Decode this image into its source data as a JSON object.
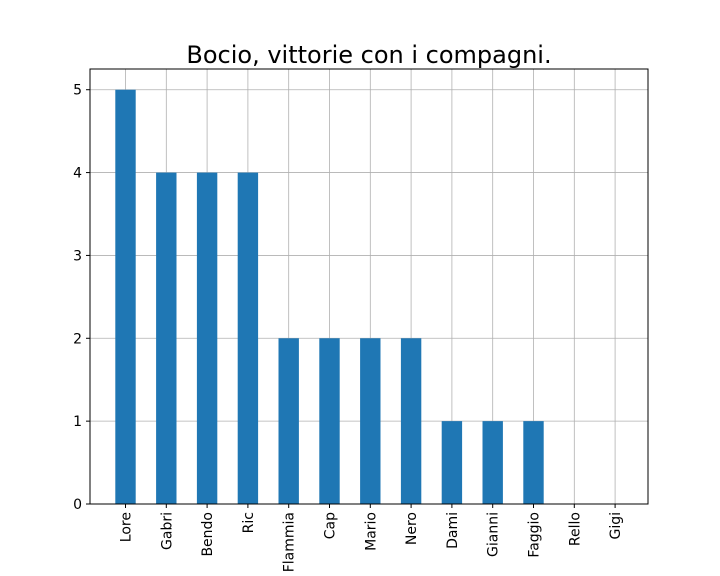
{
  "chart_data": {
    "type": "bar",
    "title": "Bocio, vittorie con i compagni.",
    "xlabel": "",
    "ylabel": "",
    "categories": [
      "Lore",
      "Gabri",
      "Bendo",
      "Ric",
      "Flammia",
      "Cap",
      "Mario",
      "Nero",
      "Dami",
      "Gianni",
      "Faggio",
      "Rello",
      "Gigi"
    ],
    "values": [
      5,
      4,
      4,
      4,
      2,
      2,
      2,
      2,
      1,
      1,
      1,
      0,
      0
    ],
    "yticks": [
      0,
      1,
      2,
      3,
      4,
      5
    ],
    "ylim": [
      0,
      5.25
    ],
    "grid": true,
    "bar_color": "#1f77b4",
    "grid_color": "#b0b0b0"
  }
}
